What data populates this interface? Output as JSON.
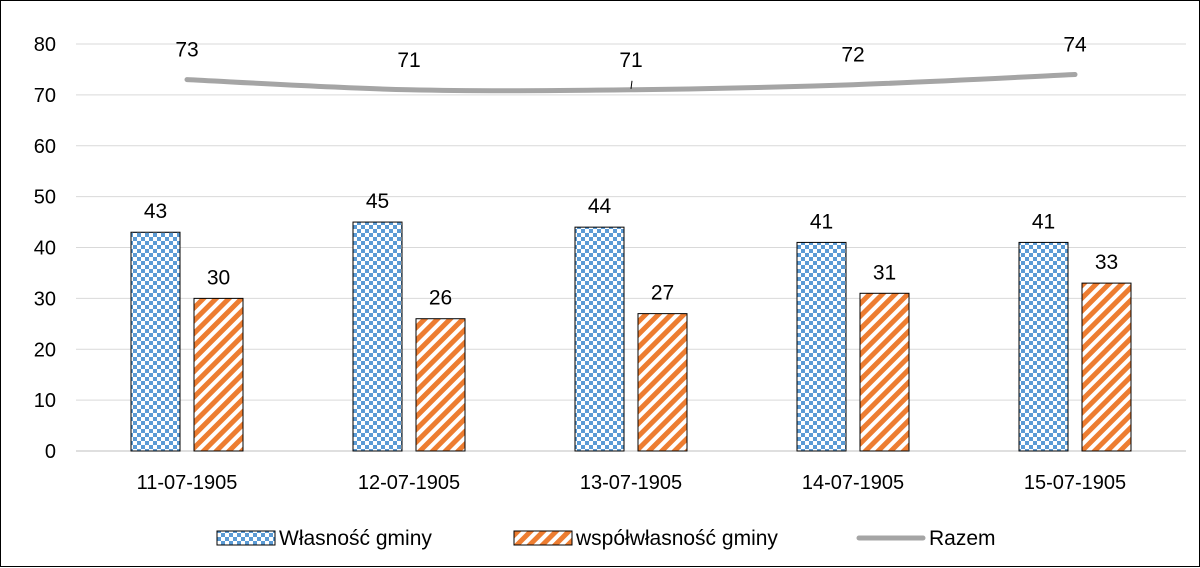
{
  "chart_data": {
    "type": "bar",
    "title": "",
    "xlabel": "",
    "ylabel": "",
    "categories": [
      "11-07-1905",
      "12-07-1905",
      "13-07-1905",
      "14-07-1905",
      "15-07-1905"
    ],
    "ylim": [
      0,
      80
    ],
    "yticks": [
      0,
      10,
      20,
      30,
      40,
      50,
      60,
      70,
      80
    ],
    "grid": true,
    "legend_position": "bottom",
    "series": [
      {
        "name": "Własność gminy",
        "kind": "bar",
        "pattern": "checker",
        "color": "#5B9BD5",
        "values": [
          43,
          45,
          44,
          41,
          41
        ]
      },
      {
        "name": "współwłasność gminy",
        "kind": "bar",
        "pattern": "diagonal-stripes",
        "color": "#ED7D31",
        "values": [
          30,
          26,
          27,
          31,
          33
        ]
      },
      {
        "name": "Razem",
        "kind": "line",
        "color": "#A5A5A5",
        "values": [
          73,
          71,
          71,
          72,
          74
        ]
      }
    ]
  }
}
